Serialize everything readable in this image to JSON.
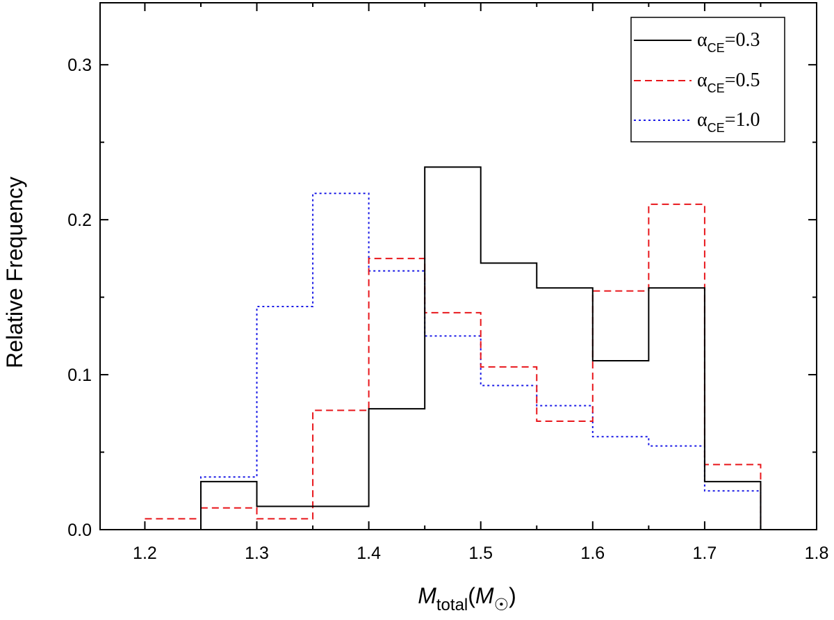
{
  "chart_data": {
    "type": "histogram",
    "title": "",
    "xlabel": {
      "main": "M",
      "main_sub": "total",
      "unit": "M",
      "unit_symbol": "☉"
    },
    "ylabel": "Relative Frequency",
    "xlim": [
      1.16,
      1.8
    ],
    "ylim": [
      0.0,
      0.34
    ],
    "xticks": [
      "1.2",
      "1.3",
      "1.4",
      "1.5",
      "1.6",
      "1.7",
      "1.8"
    ],
    "xtick_values": [
      1.2,
      1.3,
      1.4,
      1.5,
      1.6,
      1.7,
      1.8
    ],
    "yticks": [
      "0.0",
      "0.1",
      "0.2",
      "0.3"
    ],
    "ytick_values": [
      0.0,
      0.1,
      0.2,
      0.3
    ],
    "bin_edges": [
      1.2,
      1.25,
      1.3,
      1.35,
      1.4,
      1.45,
      1.5,
      1.55,
      1.6,
      1.65,
      1.7,
      1.75
    ],
    "series": [
      {
        "name": "α_CE=0.3",
        "greek": "α",
        "sub": "CE",
        "value_text": "=0.3",
        "color": "#000000",
        "dash": "solid",
        "values": [
          0.0,
          0.031,
          0.015,
          0.015,
          0.078,
          0.234,
          0.172,
          0.156,
          0.109,
          0.156,
          0.031
        ]
      },
      {
        "name": "α_CE=0.5",
        "greek": "α",
        "sub": "CE",
        "value_text": "=0.5",
        "color": "#e8161b",
        "dash": "dashed",
        "values": [
          0.007,
          0.014,
          0.007,
          0.077,
          0.175,
          0.14,
          0.105,
          0.07,
          0.154,
          0.21,
          0.042
        ]
      },
      {
        "name": "α_CE=1.0",
        "greek": "α",
        "sub": "CE",
        "value_text": "=1.0",
        "color": "#1a1ae6",
        "dash": "dotted",
        "values": [
          0.0,
          0.034,
          0.144,
          0.217,
          0.167,
          0.125,
          0.093,
          0.08,
          0.06,
          0.054,
          0.025
        ]
      }
    ],
    "legend_position": "top-right"
  }
}
